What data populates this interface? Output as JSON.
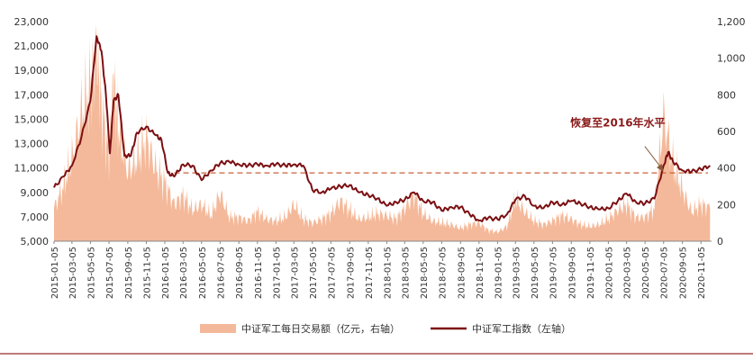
{
  "chart_data": {
    "type": "line",
    "title": "",
    "colors": {
      "index_line": "#7B0F12",
      "volume_area": "#F4B99A",
      "dashed_line": "#C8623A",
      "annotation": "#8B1A1A"
    },
    "left_axis": {
      "ylim": [
        5000,
        23000
      ],
      "ticks": [
        "5,000",
        "7,000",
        "9,000",
        "11,000",
        "13,000",
        "15,000",
        "17,000",
        "19,000",
        "21,000",
        "23,000"
      ]
    },
    "right_axis": {
      "ylim": [
        0,
        1200
      ],
      "ticks": [
        "0",
        "200",
        "400",
        "600",
        "800",
        "1,000",
        "1,200"
      ]
    },
    "x_ticks": [
      "2015-01-05",
      "2015-03-05",
      "2015-05-05",
      "2015-07-05",
      "2015-09-05",
      "2015-11-05",
      "2016-01-05",
      "2016-03-05",
      "2016-05-05",
      "2016-07-05",
      "2016-09-05",
      "2016-11-05",
      "2017-01-05",
      "2017-03-05",
      "2017-05-05",
      "2017-07-05",
      "2017-09-05",
      "2017-11-05",
      "2018-01-05",
      "2018-03-05",
      "2018-05-05",
      "2018-07-05",
      "2018-09-05",
      "2018-11-05",
      "2019-01-05",
      "2019-03-05",
      "2019-05-05",
      "2019-07-05",
      "2019-09-05",
      "2019-11-05",
      "2020-01-05",
      "2020-03-05",
      "2020-05-05",
      "2020-07-05",
      "2020-09-05",
      "2020-11-05"
    ],
    "legend_position": "bottom",
    "series": [
      {
        "name": "中证军工每日交易额（亿元，右轴）",
        "type": "area",
        "axis": "right",
        "x": [
          "2015-01-05",
          "2015-02-05",
          "2015-03-05",
          "2015-04-05",
          "2015-05-05",
          "2015-05-25",
          "2015-06-10",
          "2015-07-05",
          "2015-07-20",
          "2015-08-05",
          "2015-09-05",
          "2015-10-05",
          "2015-11-05",
          "2015-12-05",
          "2016-01-05",
          "2016-02-05",
          "2016-03-05",
          "2016-04-05",
          "2016-05-05",
          "2016-06-05",
          "2016-07-05",
          "2016-08-05",
          "2016-09-05",
          "2016-10-05",
          "2016-11-05",
          "2016-12-05",
          "2017-01-05",
          "2017-02-05",
          "2017-03-05",
          "2017-04-05",
          "2017-05-05",
          "2017-06-05",
          "2017-07-05",
          "2017-08-05",
          "2017-09-05",
          "2017-10-05",
          "2017-11-05",
          "2017-12-05",
          "2018-01-05",
          "2018-02-05",
          "2018-03-05",
          "2018-04-05",
          "2018-05-05",
          "2018-06-05",
          "2018-07-05",
          "2018-08-05",
          "2018-09-05",
          "2018-10-05",
          "2018-11-05",
          "2018-12-05",
          "2019-01-05",
          "2019-02-05",
          "2019-03-05",
          "2019-04-05",
          "2019-05-05",
          "2019-06-05",
          "2019-07-05",
          "2019-08-05",
          "2019-09-05",
          "2019-10-05",
          "2019-11-05",
          "2019-12-05",
          "2020-01-05",
          "2020-02-05",
          "2020-03-05",
          "2020-04-05",
          "2020-05-05",
          "2020-06-05",
          "2020-07-05",
          "2020-08-05",
          "2020-09-05",
          "2020-10-05",
          "2020-11-05",
          "2020-12-05"
        ],
        "values": [
          180,
          300,
          450,
          700,
          850,
          1050,
          750,
          450,
          900,
          600,
          380,
          450,
          560,
          400,
          320,
          200,
          250,
          170,
          200,
          140,
          260,
          130,
          130,
          110,
          160,
          120,
          110,
          130,
          200,
          120,
          100,
          120,
          150,
          220,
          170,
          120,
          130,
          150,
          140,
          120,
          180,
          250,
          150,
          110,
          100,
          90,
          70,
          90,
          100,
          60,
          50,
          80,
          230,
          160,
          110,
          90,
          110,
          140,
          120,
          90,
          80,
          90,
          120,
          170,
          200,
          130,
          130,
          180,
          680,
          420,
          280,
          160,
          200,
          180
        ]
      },
      {
        "name": "中证军工指数（左轴）",
        "type": "line",
        "axis": "left",
        "x": [
          "2015-01-05",
          "2015-02-05",
          "2015-03-05",
          "2015-04-05",
          "2015-05-05",
          "2015-05-25",
          "2015-06-10",
          "2015-06-25",
          "2015-07-08",
          "2015-07-20",
          "2015-08-05",
          "2015-08-25",
          "2015-09-15",
          "2015-10-05",
          "2015-11-05",
          "2015-12-05",
          "2015-12-25",
          "2016-01-15",
          "2016-02-05",
          "2016-03-05",
          "2016-04-05",
          "2016-05-05",
          "2016-06-05",
          "2016-07-05",
          "2016-08-05",
          "2016-09-05",
          "2016-10-05",
          "2016-11-05",
          "2016-12-05",
          "2017-01-05",
          "2017-02-05",
          "2017-03-05",
          "2017-04-05",
          "2017-05-05",
          "2017-06-05",
          "2017-07-05",
          "2017-08-05",
          "2017-09-05",
          "2017-10-05",
          "2017-11-05",
          "2017-12-05",
          "2018-01-05",
          "2018-02-05",
          "2018-03-05",
          "2018-04-05",
          "2018-05-05",
          "2018-06-05",
          "2018-07-05",
          "2018-08-05",
          "2018-09-05",
          "2018-10-05",
          "2018-11-05",
          "2018-12-05",
          "2019-01-05",
          "2019-02-05",
          "2019-03-05",
          "2019-04-05",
          "2019-05-05",
          "2019-06-05",
          "2019-07-05",
          "2019-08-05",
          "2019-09-05",
          "2019-10-05",
          "2019-11-05",
          "2019-12-05",
          "2020-01-05",
          "2020-02-05",
          "2020-03-05",
          "2020-04-05",
          "2020-05-05",
          "2020-06-05",
          "2020-07-05",
          "2020-07-20",
          "2020-08-05",
          "2020-09-05",
          "2020-10-05",
          "2020-11-05",
          "2020-12-05"
        ],
        "values": [
          9400,
          10300,
          11200,
          13500,
          16500,
          21800,
          20600,
          17000,
          12200,
          16500,
          17000,
          12000,
          12000,
          13900,
          14400,
          13700,
          13300,
          10600,
          10300,
          11300,
          11200,
          10000,
          10800,
          11400,
          11500,
          11300,
          11200,
          11300,
          11200,
          11300,
          11200,
          11300,
          11200,
          9200,
          9000,
          9300,
          9500,
          9600,
          9000,
          8800,
          8500,
          7900,
          8200,
          8400,
          9000,
          8300,
          8200,
          7500,
          7800,
          7800,
          7200,
          6700,
          6900,
          6800,
          7200,
          8400,
          8700,
          7900,
          7700,
          8200,
          8000,
          8300,
          8100,
          7800,
          7600,
          7700,
          8300,
          8900,
          8200,
          8100,
          8500,
          11200,
          12300,
          11500,
          10800,
          10700,
          10900,
          11200
        ]
      }
    ],
    "reference_line": {
      "axis": "left",
      "value": 10600,
      "style": "dashed"
    },
    "annotations": [
      {
        "text": "恢复至2016年水平",
        "x": "2020-02-05",
        "y": 14400,
        "arrow_to_x": "2020-07-05",
        "arrow_to_y": 10700
      }
    ]
  }
}
